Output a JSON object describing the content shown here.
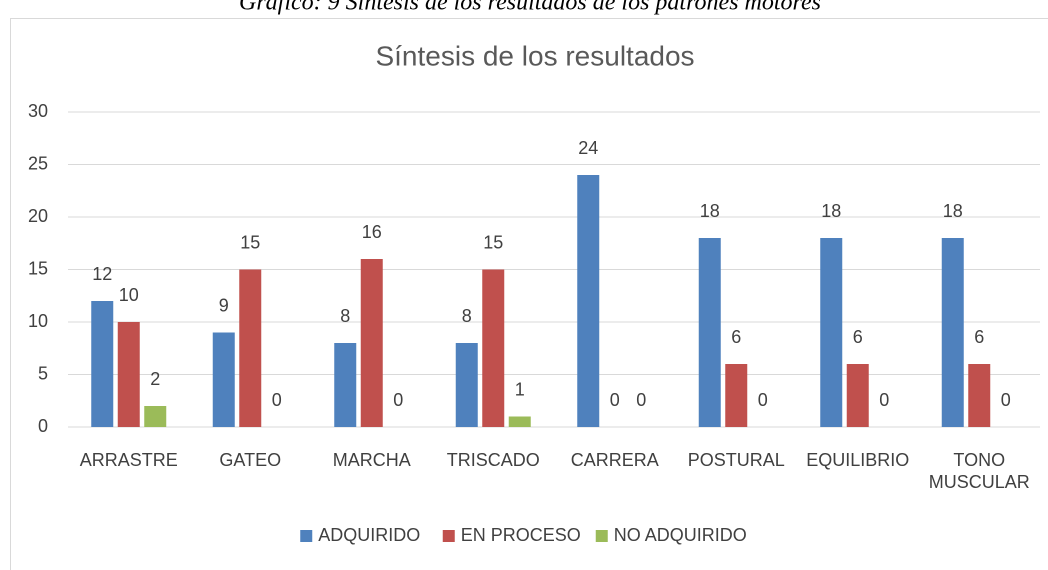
{
  "chart_data": {
    "type": "bar",
    "caption": "Gráfico: 9 Síntesis de los resultados de los patrones motores",
    "title": "Síntesis de los resultados",
    "categories": [
      "ARRASTRE",
      "GATEO",
      "MARCHA",
      "TRISCADO",
      "CARRERA",
      "POSTURAL",
      "EQUILIBRIO",
      "TONO MUSCULAR"
    ],
    "series": [
      {
        "name": "ADQUIRIDO",
        "color": "#4f81bd",
        "values": [
          12,
          9,
          8,
          8,
          24,
          18,
          18,
          18
        ]
      },
      {
        "name": "EN PROCESO",
        "color": "#c0504d",
        "values": [
          10,
          15,
          16,
          15,
          0,
          6,
          6,
          6
        ]
      },
      {
        "name": "NO ADQUIRIDO",
        "color": "#9bbb59",
        "values": [
          2,
          0,
          0,
          1,
          0,
          0,
          0,
          0
        ]
      }
    ],
    "ylim": [
      0,
      30
    ],
    "yticks": [
      0,
      5,
      10,
      15,
      20,
      25,
      30
    ],
    "grid": true,
    "legend": "bottom"
  }
}
